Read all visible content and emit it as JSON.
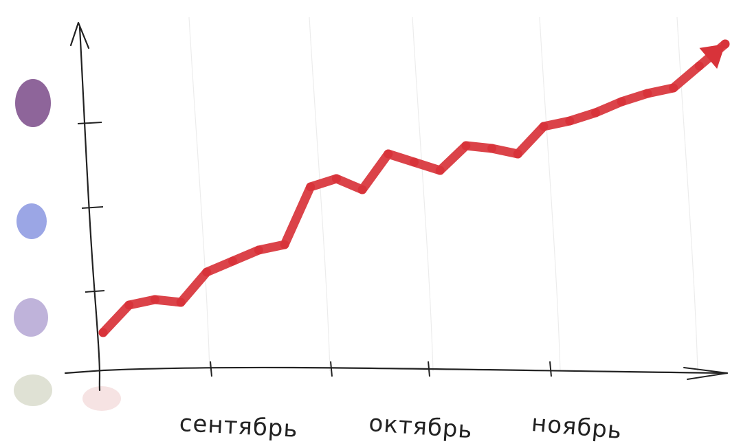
{
  "chart_data": {
    "type": "line",
    "title": "",
    "xlabel": "",
    "ylabel": "",
    "categories": [
      "сентябрь",
      "октябрь",
      "ноябрь"
    ],
    "x": [
      0,
      0.5,
      1,
      1.5,
      2,
      2.5,
      3,
      3.5,
      4,
      4.5,
      5,
      5.5,
      6,
      6.5,
      7,
      7.5,
      8,
      8.5,
      9,
      9.5,
      10,
      10.5,
      11,
      11.5,
      12
    ],
    "series": [
      {
        "values": [
          0.45,
          0.95,
          1.05,
          1.0,
          1.55,
          1.75,
          1.95,
          2.05,
          3.1,
          3.25,
          3.05,
          3.7,
          3.55,
          3.4,
          3.85,
          3.8,
          3.7,
          4.2,
          4.3,
          4.45,
          4.65,
          4.8,
          4.9,
          5.3,
          5.7
        ],
        "color": "#d8333a"
      }
    ],
    "ylim": [
      0,
      6
    ],
    "xlim": [
      0,
      12
    ],
    "grid": true,
    "legend": "none",
    "color_swatches": [
      "#7a4a88",
      "#8a96e0",
      "#b4a6d4",
      "#d9dccd",
      "#f5dede"
    ]
  }
}
